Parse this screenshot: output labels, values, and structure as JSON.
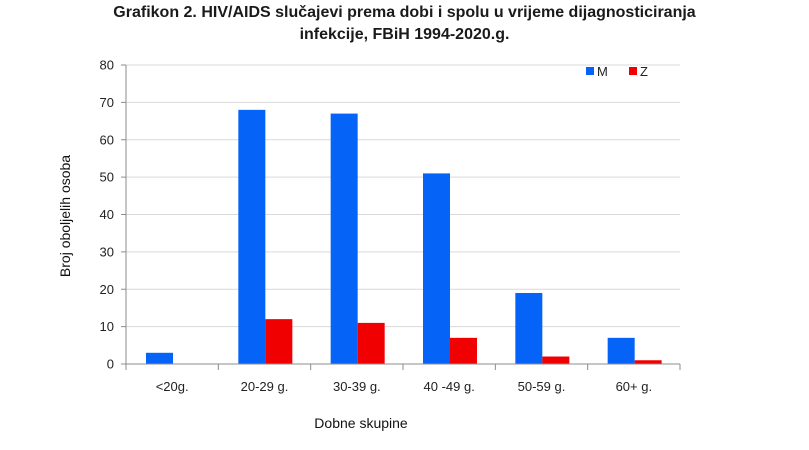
{
  "chart_data": {
    "type": "bar",
    "title_line1": "Grafikon 2. HIV/AIDS slučajevi prema dobi i spolu u vrijeme dijagnosticiranja",
    "title_line2": "infekcije, FBiH 1994-2020.g.",
    "xlabel": "Dobne skupine",
    "ylabel": "Broj oboljelih  osoba",
    "categories": [
      "<20g.",
      "20-29 g.",
      "30-39 g.",
      "40 -49 g.",
      "50-59 g.",
      "60+ g."
    ],
    "series": [
      {
        "name": "M",
        "color": "#0563f7",
        "values": [
          3,
          68,
          67,
          51,
          19,
          7
        ]
      },
      {
        "name": "Z",
        "color": "#f00000",
        "values": [
          0,
          12,
          11,
          7,
          2,
          1
        ]
      }
    ],
    "ylim": [
      0,
      80
    ],
    "yticks": [
      "0",
      "10",
      "20",
      "30",
      "40",
      "50",
      "60",
      "70",
      "80"
    ],
    "grid": true,
    "legend_position": "top-right"
  }
}
